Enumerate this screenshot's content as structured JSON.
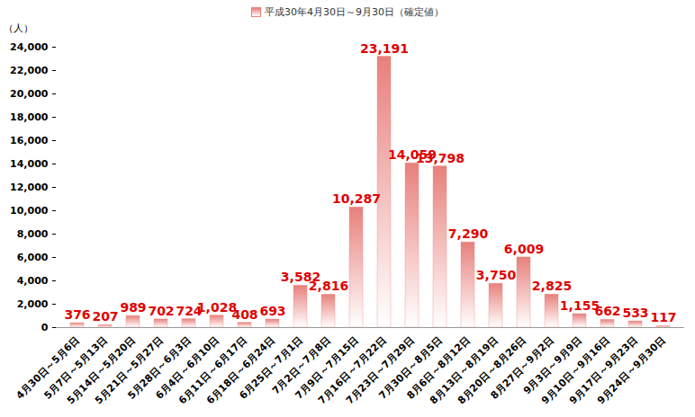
{
  "chart_data": {
    "type": "bar",
    "legend": "top",
    "series_name": "平成30年4月30日～9月30日（確定値）",
    "y_label": "（人）",
    "categories": [
      "4月30日～5月6日",
      "5月7日～5月13日",
      "5月14日～5月20日",
      "5月21日～5月27日",
      "5月28日～6月3日",
      "6月4日～6月10日",
      "6月11日～6月17日",
      "6月18日～6月24日",
      "6月25日～7月1日",
      "7月2日～7月8日",
      "7月9日～7月15日",
      "7月16日～7月22日",
      "7月23日～7月29日",
      "7月30日～8月5日",
      "8月6日～8月12日",
      "8月13日～8月19日",
      "8月20日～8月26日",
      "8月27日～9月2日",
      "9月3日～9月9日",
      "9月10日～9月16日",
      "9月17日～9月23日",
      "9月24日～9月30日"
    ],
    "values": [
      376,
      207,
      989,
      702,
      724,
      1028,
      408,
      693,
      3582,
      2816,
      10287,
      23191,
      14059,
      13798,
      7290,
      3750,
      6009,
      2825,
      1155,
      662,
      533,
      117
    ],
    "value_labels": [
      "376",
      "207",
      "989",
      "702",
      "724",
      "1,028",
      "408",
      "693",
      "3,582",
      "2,816",
      "10,287",
      "23,191",
      "14,059",
      "13,798",
      "7,290",
      "3,750",
      "6,009",
      "2,825",
      "1,155",
      "662",
      "533",
      "117"
    ],
    "data_labels": true,
    "color": "#e8807c",
    "label_color": "#e00000",
    "ylim": [
      0,
      24000
    ],
    "yticks": [
      0,
      {
        "value": 2000,
        "label": "2,000"
      },
      {
        "value": 4000,
        "label": "4,000"
      },
      {
        "value": 6000,
        "label": "6,000"
      },
      {
        "value": 8000,
        "label": "8,000"
      },
      {
        "value": 10000,
        "label": "10,000"
      },
      {
        "value": 12000,
        "label": "12,000"
      },
      {
        "value": 14000,
        "label": "14,000"
      },
      {
        "value": 16000,
        "label": "16,000"
      },
      {
        "value": 18000,
        "label": "18,000"
      },
      {
        "value": 20000,
        "label": "20,000"
      },
      {
        "value": 22000,
        "label": "22,000"
      },
      {
        "value": 24000,
        "label": "24,000"
      }
    ],
    "grid": false
  }
}
